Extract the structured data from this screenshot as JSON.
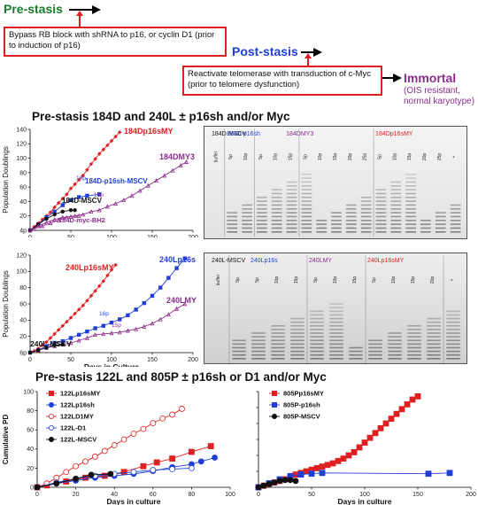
{
  "flow": {
    "pre_stasis": "Pre-stasis",
    "bypass_text": "Bypass RB block with shRNA to p16, or cyclin D1 (prior to induction of p16)",
    "post_stasis": "Post-stasis",
    "reactivate_text": "Reactivate telomerase with transduction of c-Myc (prior to telomere dysfunction)",
    "immortal": "Immortal",
    "immortal_note": "(OIS resistant, normal karyotype)",
    "colors": {
      "pre_stasis": "#1b7a2e",
      "post_stasis": "#1f3fd6",
      "immortal": "#8a2d8c",
      "arrow_red": "#e02020"
    }
  },
  "section1_title": "Pre-stasis 184D and 240L ± p16sh and/or Myc",
  "section2_title": "Pre-stasis 122L and 805P ± p16sh or D1 and/or Myc",
  "gel1": {
    "headers": [
      "184D-MSCV",
      "184D-p16sh",
      "184DMY3",
      "184Dp16sMY"
    ],
    "header_colors": [
      "#111111",
      "#1f3fd6",
      "#8a2d8c",
      "#e02020"
    ],
    "lanes": [
      "buffer",
      "5p",
      "10p",
      "5p",
      "10p",
      "15p",
      "5p",
      "10p",
      "15p",
      "20p",
      "25p",
      "5p",
      "10p",
      "15p",
      "20p",
      "25p",
      "+"
    ]
  },
  "gel2": {
    "headers": [
      "240L-MSCV",
      "240Lp16s",
      "240LMY",
      "240Lp16sMY"
    ],
    "header_colors": [
      "#111111",
      "#1f3fd6",
      "#8a2d8c",
      "#e02020"
    ],
    "lanes": [
      "buffer",
      "5p",
      "5p",
      "10p",
      "15p",
      "5p",
      "10p",
      "15p",
      "5p",
      "10p",
      "15p",
      "20p",
      "+"
    ]
  },
  "chart_data": [
    {
      "type": "line",
      "xlabel": "",
      "ylabel": "Population Doublings",
      "xlim": [
        0,
        200
      ],
      "ylim": [
        0,
        140
      ],
      "x_ticks": [
        0,
        50,
        100,
        150,
        200
      ],
      "y_ticks": [
        20,
        40,
        60,
        80,
        100,
        120,
        140
      ],
      "y_tick_labels": [
        "20",
        "40",
        "60",
        "80",
        "100",
        "120",
        "140"
      ],
      "origin_label": "4p",
      "series": [
        {
          "name": "184Dp16sMY",
          "color": "#e02020",
          "marker": "diamond",
          "x": [
            0,
            5,
            10,
            15,
            20,
            25,
            30,
            35,
            40,
            45,
            50,
            55,
            60,
            65,
            70,
            75,
            80,
            85,
            90,
            95,
            100,
            105,
            110
          ],
          "y": [
            0,
            5,
            10,
            15,
            20,
            25,
            32,
            38,
            44,
            50,
            58,
            64,
            70,
            76,
            84,
            92,
            99,
            106,
            112,
            118,
            124,
            130,
            136
          ]
        },
        {
          "name": "184DMY3",
          "color": "#8a2d8c",
          "marker": "triangle",
          "x": [
            5,
            15,
            25,
            35,
            45,
            55,
            65,
            75,
            85,
            95,
            105,
            115,
            125,
            135,
            145,
            155,
            165,
            175,
            185,
            192
          ],
          "y": [
            2,
            6,
            10,
            14,
            18,
            20,
            22,
            26,
            28,
            33,
            37,
            42,
            48,
            55,
            62,
            69,
            76,
            83,
            90,
            95
          ]
        },
        {
          "name": "184D-p16sh-MSCV",
          "color": "#1f3fd6",
          "marker": "square",
          "x": [
            0,
            10,
            20,
            30,
            40,
            50,
            60,
            70,
            85
          ],
          "y": [
            0,
            8,
            18,
            26,
            35,
            42,
            46,
            48,
            50
          ]
        },
        {
          "name": "184D-MSCV",
          "color": "#111111",
          "marker": "circle",
          "x": [
            0,
            10,
            20,
            30,
            40,
            50,
            55
          ],
          "y": [
            0,
            8,
            16,
            22,
            26,
            28,
            28
          ]
        },
        {
          "name": "184D-myc-BH2",
          "color": "#8a2d8c",
          "marker": "triangle",
          "x": [
            0,
            10,
            20,
            30,
            40,
            50,
            60
          ],
          "y": [
            0,
            6,
            11,
            15,
            18,
            19,
            20
          ]
        }
      ],
      "annotations": [
        "10p",
        "15p"
      ]
    },
    {
      "type": "line",
      "xlabel": "Days in Culture",
      "ylabel": "Population Doublings",
      "xlim": [
        0,
        200
      ],
      "ylim": [
        0,
        120
      ],
      "x_ticks": [
        0,
        50,
        100,
        150,
        200
      ],
      "y_ticks": [
        20,
        40,
        60,
        80,
        100,
        120
      ],
      "y_tick_labels": [
        "20",
        "40",
        "60",
        "80",
        "100",
        "120"
      ],
      "origin_label": "6p",
      "series": [
        {
          "name": "240Lp16sMY",
          "color": "#e02020",
          "marker": "diamond",
          "x": [
            0,
            5,
            10,
            15,
            20,
            25,
            30,
            35,
            40,
            45,
            50,
            55,
            60,
            65,
            70,
            75,
            80,
            85,
            90,
            95,
            100,
            105
          ],
          "y": [
            0,
            2,
            5,
            9,
            13,
            18,
            23,
            28,
            33,
            38,
            43,
            48,
            53,
            58,
            64,
            70,
            76,
            82,
            88,
            95,
            102,
            108
          ]
        },
        {
          "name": "240Lp16s",
          "color": "#1f3fd6",
          "marker": "square",
          "x": [
            0,
            10,
            20,
            30,
            40,
            50,
            60,
            70,
            80,
            90,
            100,
            110,
            120,
            130,
            140,
            150,
            160,
            170,
            180,
            190
          ],
          "y": [
            0,
            3,
            8,
            12,
            14,
            18,
            22,
            26,
            30,
            33,
            37,
            41,
            46,
            53,
            61,
            70,
            80,
            92,
            104,
            116
          ]
        },
        {
          "name": "240LMY",
          "color": "#8a2d8c",
          "marker": "triangle",
          "x": [
            10,
            20,
            30,
            40,
            50,
            60,
            70,
            80,
            90,
            100,
            110,
            120,
            130,
            140,
            150,
            160,
            170,
            180,
            190
          ],
          "y": [
            3,
            6,
            8,
            10,
            12,
            15,
            18,
            22,
            23,
            24,
            25,
            27,
            29,
            32,
            36,
            41,
            47,
            54,
            60
          ]
        },
        {
          "name": "240L-MSCV",
          "color": "#111111",
          "marker": "circle",
          "x": [
            0,
            10,
            20,
            30,
            40
          ],
          "y": [
            0,
            3,
            6,
            9,
            10
          ]
        }
      ],
      "annotations": [
        "16p",
        "15p"
      ]
    },
    {
      "type": "line",
      "xlabel": "Days in culture",
      "ylabel": "Cumulative PD",
      "xlim": [
        0,
        100
      ],
      "ylim": [
        0,
        100
      ],
      "x_ticks": [
        0,
        20,
        40,
        60,
        80,
        100
      ],
      "y_ticks": [
        0,
        20,
        40,
        60,
        80,
        100
      ],
      "series": [
        {
          "name": "122Lp16sMY",
          "color": "#e02020",
          "marker": "square",
          "fill": "solid",
          "x": [
            0,
            5,
            15,
            25,
            35,
            45,
            55,
            62,
            70,
            80,
            90
          ],
          "y": [
            0,
            2,
            6,
            10,
            12,
            16,
            22,
            26,
            30,
            37,
            43
          ]
        },
        {
          "name": "122Lp16sh",
          "color": "#1f3fd6",
          "marker": "circle",
          "fill": "solid",
          "x": [
            0,
            10,
            20,
            30,
            40,
            50,
            60,
            70,
            80,
            85,
            92
          ],
          "y": [
            0,
            4,
            7,
            10,
            12,
            14,
            17,
            21,
            24,
            27,
            31
          ]
        },
        {
          "name": "122LD1MY",
          "color": "#e02020",
          "marker": "circle",
          "fill": "hollow",
          "x": [
            0,
            5,
            10,
            15,
            20,
            25,
            30,
            35,
            40,
            45,
            50,
            55,
            60,
            65,
            70,
            75
          ],
          "y": [
            0,
            4,
            10,
            16,
            22,
            27,
            32,
            38,
            44,
            50,
            56,
            61,
            67,
            72,
            76,
            82
          ]
        },
        {
          "name": "122L-D1",
          "color": "#1f3fd6",
          "marker": "circle",
          "fill": "hollow",
          "x": [
            0,
            10,
            20,
            30,
            40,
            50,
            60,
            70,
            80
          ],
          "y": [
            0,
            5,
            9,
            12,
            14,
            16,
            18,
            19,
            20
          ]
        },
        {
          "name": "122L-MSCV",
          "color": "#111111",
          "marker": "circle",
          "fill": "solid",
          "x": [
            0,
            10,
            20,
            28,
            38
          ],
          "y": [
            0,
            4,
            9,
            13,
            14
          ]
        }
      ]
    },
    {
      "type": "line",
      "xlabel": "Days in culture",
      "ylabel": "",
      "xlim": [
        0,
        200
      ],
      "ylim": [
        0,
        120
      ],
      "x_ticks": [
        0,
        50,
        100,
        150,
        200
      ],
      "y_ticks": [
        0,
        20,
        40,
        60,
        80,
        100,
        120
      ],
      "series": [
        {
          "name": "805Pp16sMY",
          "color": "#e02020",
          "marker": "square",
          "fill": "solid",
          "x": [
            0,
            5,
            10,
            15,
            20,
            25,
            30,
            35,
            40,
            45,
            50,
            55,
            60,
            65,
            70,
            75,
            80,
            85,
            90,
            95,
            100,
            105,
            110,
            115,
            120,
            125,
            130,
            135,
            140,
            145,
            150
          ],
          "y": [
            0,
            2,
            4,
            6,
            8,
            10,
            12,
            16,
            18,
            20,
            22,
            24,
            26,
            28,
            30,
            33,
            36,
            40,
            44,
            50,
            56,
            62,
            68,
            74,
            80,
            86,
            92,
            98,
            104,
            110,
            114
          ]
        },
        {
          "name": "805P-p16sh",
          "color": "#1f3fd6",
          "marker": "square",
          "fill": "solid",
          "x": [
            0,
            10,
            20,
            30,
            40,
            50,
            60,
            160,
            180
          ],
          "y": [
            0,
            5,
            10,
            14,
            16,
            17,
            18,
            17,
            18
          ]
        },
        {
          "name": "805P-MSCV",
          "color": "#111111",
          "marker": "circle",
          "fill": "solid",
          "x": [
            0,
            5,
            10,
            15,
            20,
            25,
            30,
            35
          ],
          "y": [
            0,
            2,
            4,
            6,
            8,
            9,
            9,
            8
          ]
        }
      ]
    }
  ]
}
